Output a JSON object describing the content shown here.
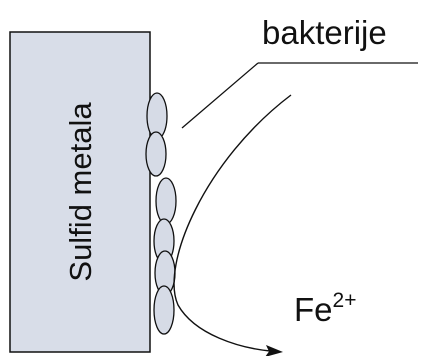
{
  "labels": {
    "block": "Sulfid metala",
    "bacteria": "bakterije",
    "ion_base": "Fe",
    "ion_charge": "2+"
  },
  "bacteria_count": 6,
  "colors": {
    "block_fill": "#d8dde8",
    "stroke": "#111111",
    "bacterium_fill": "#d6dbe6"
  }
}
